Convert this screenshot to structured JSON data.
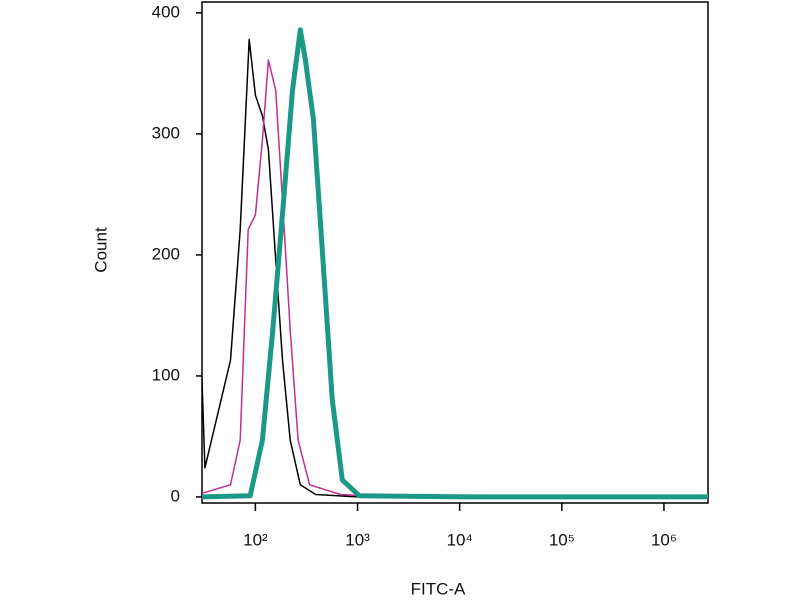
{
  "chart_data": {
    "type": "line",
    "x_label": "FITC-A",
    "y_label": "Count",
    "log_x": true,
    "xlim": [
      30,
      2700000
    ],
    "xticks": [
      {
        "value": 100,
        "label": "10²"
      },
      {
        "value": 1000,
        "label": "10³"
      },
      {
        "value": 10000,
        "label": "10⁴"
      },
      {
        "value": 100000,
        "label": "10⁵"
      },
      {
        "value": 1000000,
        "label": "10⁶"
      }
    ],
    "ylim": [
      -5,
      409
    ],
    "yticks": [
      0,
      100,
      200,
      300,
      400
    ],
    "grid": false,
    "series": [
      {
        "color": "#000000",
        "width": 1.5,
        "x": [
          30,
          32,
          57,
          71,
          87,
          100,
          117,
          134,
          158,
          184,
          219,
          275,
          389,
          1000,
          2700000
        ],
        "values": [
          97,
          24,
          113,
          221,
          378,
          332,
          315,
          287,
          196,
          113,
          47,
          10,
          2,
          0,
          0
        ]
      },
      {
        "color": "#c0308c",
        "width": 1.5,
        "x": [
          30,
          57,
          71,
          85,
          100,
          117,
          134,
          158,
          184,
          219,
          262,
          339,
          681,
          2000,
          2700000
        ],
        "values": [
          3,
          10,
          47,
          221,
          233,
          295,
          361,
          336,
          245,
          138,
          47,
          10,
          2,
          0,
          0
        ]
      },
      {
        "color": "#1a9a84",
        "width": 5,
        "x": [
          30,
          89,
          117,
          148,
          189,
          231,
          275,
          309,
          370,
          452,
          566,
          710,
          1040,
          11700,
          2700000
        ],
        "values": [
          0,
          1,
          47,
          138,
          245,
          336,
          386,
          361,
          312,
          204,
          80,
          14,
          1,
          0,
          0
        ]
      }
    ]
  }
}
